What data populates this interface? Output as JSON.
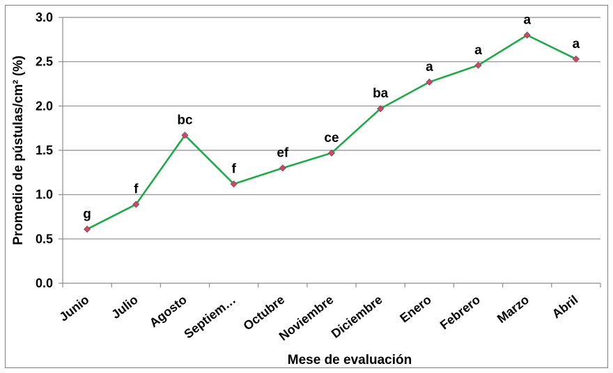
{
  "chart_data": {
    "type": "line",
    "title": "",
    "xlabel": "Mese de evaluación",
    "ylabel": "Promedio de pústulas/cm² (%)",
    "ylim": [
      0,
      3.0
    ],
    "yticks": [
      "0.0",
      "0.5",
      "1.0",
      "1.5",
      "2.0",
      "2.5",
      "3.0"
    ],
    "grid": true,
    "legend": "none",
    "categories": [
      "Junio",
      "Julio",
      "Agosto",
      "Septiem…",
      "Octubre",
      "Noviembre",
      "Diciembre",
      "Enero",
      "Febrero",
      "Marzo",
      "Abril"
    ],
    "series": [
      {
        "values": [
          0.61,
          0.89,
          1.67,
          1.12,
          1.3,
          1.47,
          1.97,
          2.27,
          2.46,
          2.8,
          2.53
        ],
        "labels": [
          "g",
          "f",
          "bc",
          "f",
          "ef",
          "ce",
          "ba",
          "a",
          "a",
          "a",
          "a"
        ],
        "line_color": "#22a84a",
        "marker_color": "#c0506a"
      }
    ]
  }
}
